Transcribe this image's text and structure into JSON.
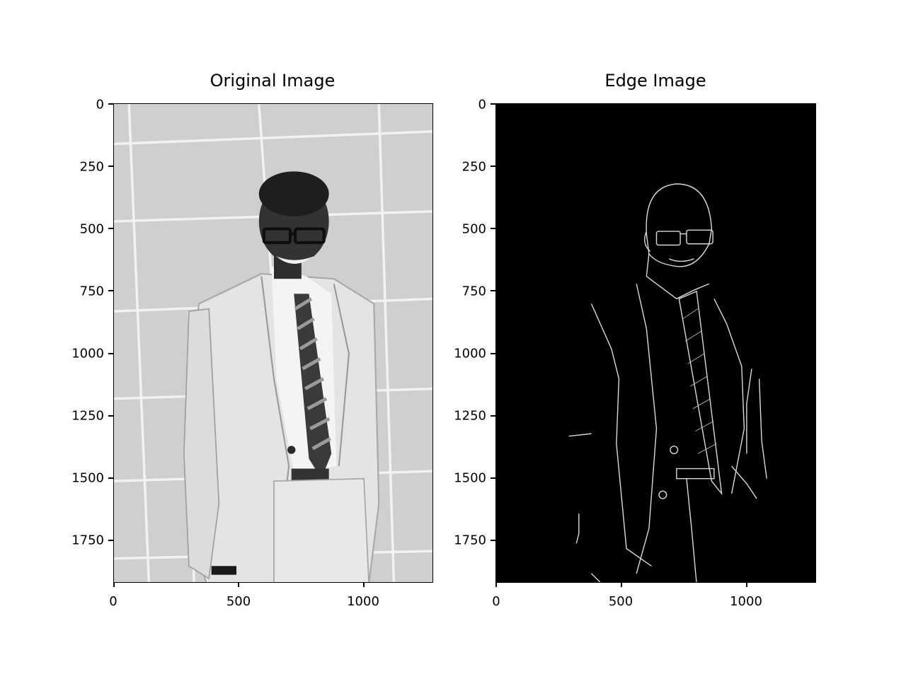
{
  "figure": {
    "background": "#ffffff"
  },
  "chart_data": [
    {
      "type": "image",
      "title": "Original Image",
      "colormap": "gray",
      "image_width": 1280,
      "image_height": 1920,
      "xlim": [
        0,
        1280
      ],
      "ylim": [
        1920,
        0
      ],
      "x_ticks": [
        0,
        500,
        1000
      ],
      "y_ticks": [
        0,
        250,
        500,
        750,
        1000,
        1250,
        1500,
        1750
      ],
      "x_tick_labels": [
        "0",
        "500",
        "1000"
      ],
      "y_tick_labels": [
        "0",
        "250",
        "500",
        "750",
        "1000",
        "1250",
        "1500",
        "1750"
      ],
      "content": "grayscale photo of a smiling man in a light suit and striped tie against a tiled wall"
    },
    {
      "type": "image",
      "title": "Edge Image",
      "colormap": "gray",
      "image_width": 1280,
      "image_height": 1920,
      "xlim": [
        0,
        1280
      ],
      "ylim": [
        1920,
        0
      ],
      "x_ticks": [
        0,
        500,
        1000
      ],
      "y_ticks": [
        0,
        250,
        500,
        750,
        1000,
        1250,
        1500,
        1750
      ],
      "x_tick_labels": [
        "0",
        "500",
        "1000"
      ],
      "y_tick_labels": [
        "0",
        "250",
        "500",
        "750",
        "1000",
        "1250",
        "1500",
        "1750"
      ],
      "content": "edge detection output: thin white outlines on black background"
    }
  ]
}
